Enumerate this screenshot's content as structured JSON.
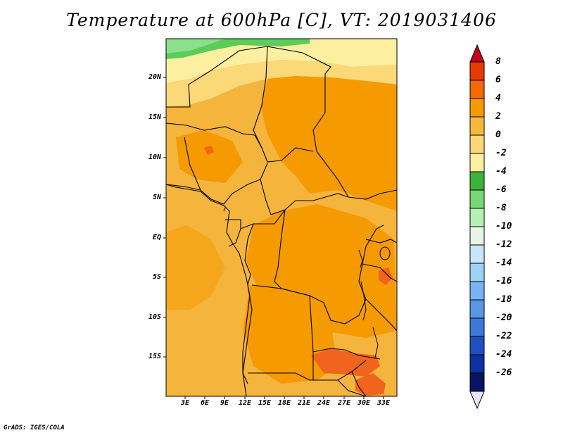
{
  "title": "Temperature at 600hPa [C], VT: 2019031406",
  "credit": "GrADS: IGES/COLA",
  "map": {
    "lat_labels": [
      "20N",
      "15N",
      "10N",
      "5N",
      "EQ",
      "5S",
      "10S",
      "15S"
    ],
    "lon_labels": [
      "3E",
      "6E",
      "9E",
      "12E",
      "15E",
      "18E",
      "21E",
      "24E",
      "27E",
      "30E",
      "33E"
    ]
  },
  "colorbar": {
    "labels": [
      "8",
      "6",
      "4",
      "2",
      "0",
      "-2",
      "-4",
      "-6",
      "-8",
      "-10",
      "-12",
      "-14",
      "-16",
      "-18",
      "-20",
      "-22",
      "-24",
      "-26"
    ],
    "colors": [
      "#c4001c",
      "#e63a00",
      "#f26a00",
      "#f59a00",
      "#f5b83c",
      "#fad878",
      "#fcf0a0",
      "#3cb43c",
      "#78d878",
      "#b4f0b4",
      "#e6f5e6",
      "#c8e6fa",
      "#a0d2f8",
      "#78b4f0",
      "#5a96e6",
      "#3c78d8",
      "#1e50c0",
      "#0a32a0",
      "#0a1464",
      "#e6e6f5"
    ]
  }
}
